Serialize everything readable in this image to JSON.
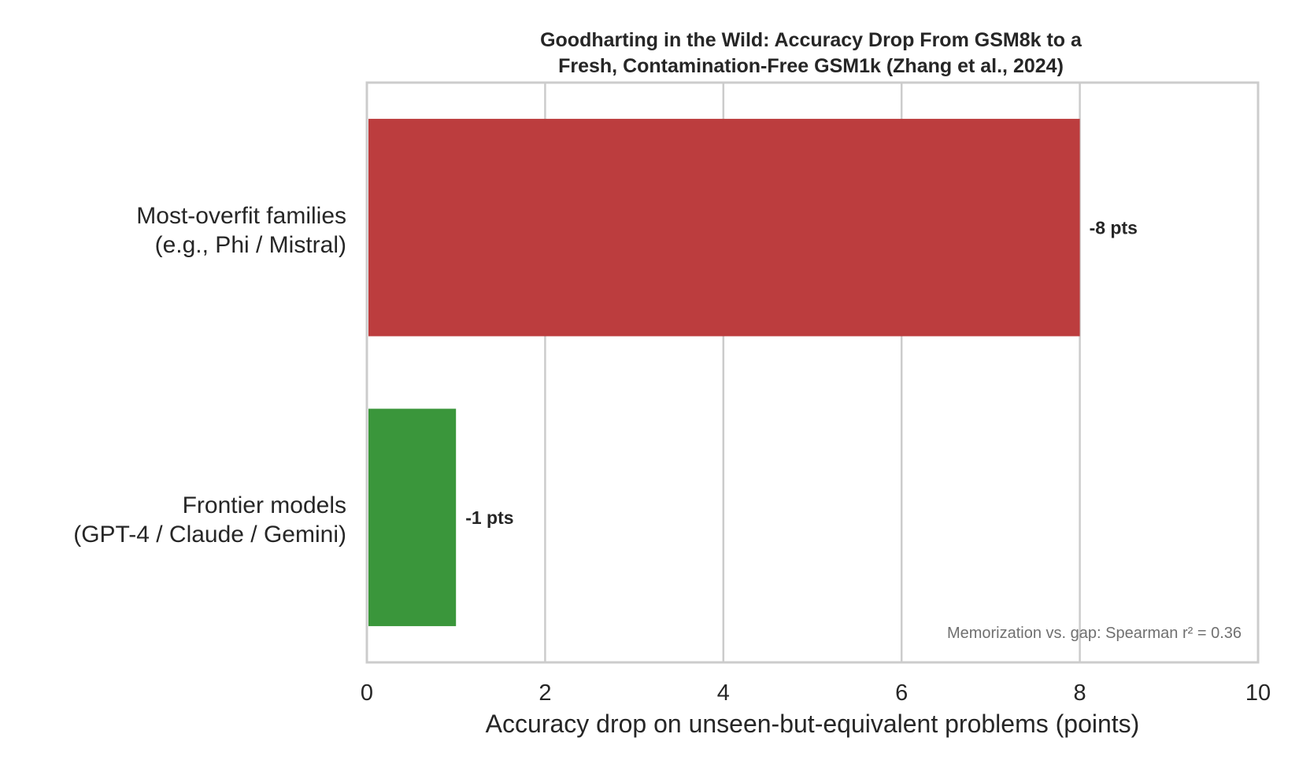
{
  "chart_data": {
    "type": "bar",
    "orientation": "horizontal",
    "title_lines": [
      "Goodharting in the Wild: Accuracy Drop From GSM8k to a",
      "Fresh, Contamination-Free GSM1k (Zhang et al., 2024)"
    ],
    "categories": [
      [
        "Most-overfit families",
        "(e.g., Phi / Mistral)"
      ],
      [
        "Frontier models",
        "(GPT-4 / Claude / Gemini)"
      ]
    ],
    "values": [
      8,
      1
    ],
    "bar_labels": [
      "-8 pts",
      "-1 pts"
    ],
    "colors": [
      "#bc3d3e",
      "#3a963b"
    ],
    "xlabel": "Accuracy drop on unseen-but-equivalent problems (points)",
    "ylabel": "",
    "xlim": [
      0,
      10
    ],
    "xticks": [
      0,
      2,
      4,
      6,
      8,
      10
    ],
    "grid": "vertical",
    "annotation": "Memorization vs. gap: Spearman r² = 0.36"
  }
}
